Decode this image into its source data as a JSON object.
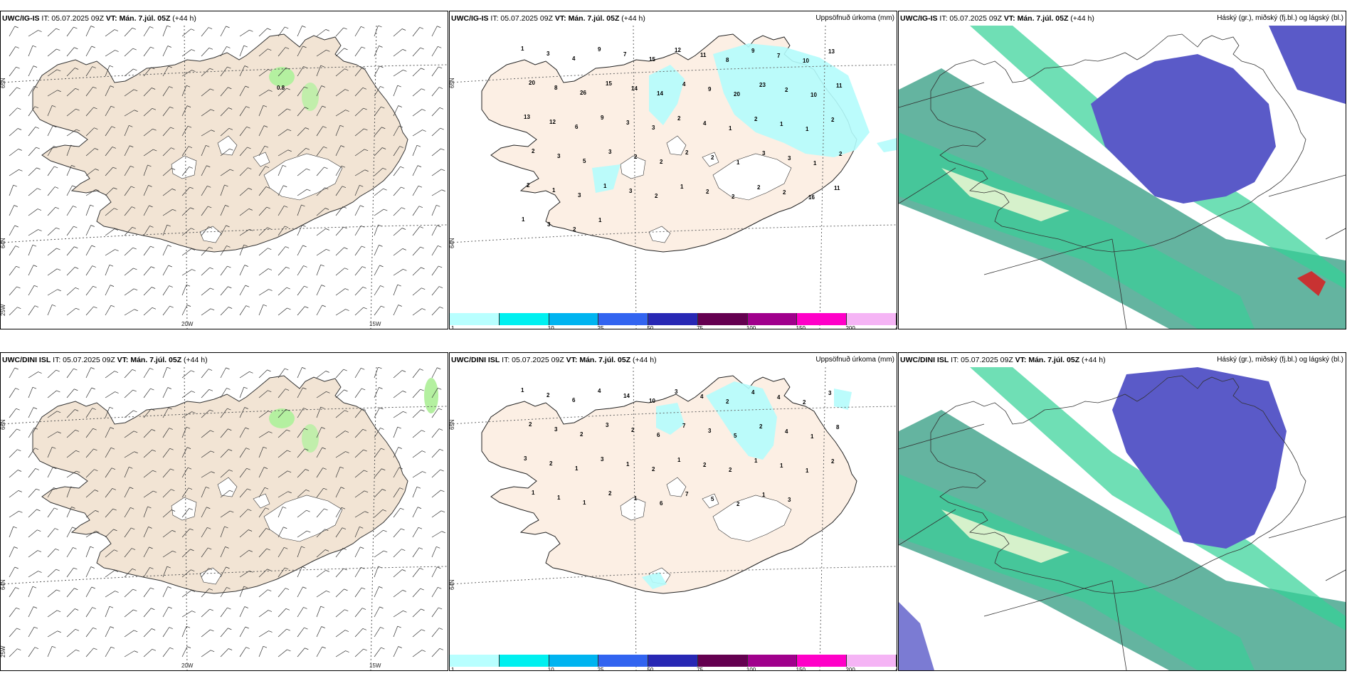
{
  "panels": [
    {
      "model": "UWC/IG-IS",
      "it": "IT: 05.07.2025 09Z",
      "vt": "VT: Mán. 7.júl. 05Z",
      "lead": "(+44 h)",
      "right_title": "",
      "kind": "wind",
      "lat_labels": [
        "65N",
        "64N"
      ],
      "lon_labels": [
        "25W",
        "20W",
        "15W"
      ],
      "point_value": "0.8"
    },
    {
      "model": "UWC/IG-IS",
      "it": "IT: 05.07.2025 09Z",
      "vt": "VT: Mán. 7.júl. 05Z",
      "lead": "(+44 h)",
      "right_title": "Uppsöfnuð úrkoma (mm)",
      "kind": "precip",
      "lat_labels": [
        "65N",
        "64N"
      ],
      "values": [
        "1",
        "3",
        "4",
        "9",
        "7",
        "15",
        "12",
        "11",
        "8",
        "9",
        "7",
        "10",
        "13",
        "20",
        "8",
        "26",
        "15",
        "14",
        "14",
        "4",
        "9",
        "20",
        "23",
        "2",
        "10",
        "11",
        "13",
        "12",
        "6",
        "9",
        "3",
        "3",
        "2",
        "4",
        "1",
        "2",
        "1",
        "1",
        "2",
        "2",
        "3",
        "5",
        "3",
        "2",
        "2",
        "2",
        "2",
        "1",
        "3",
        "3",
        "1",
        "2",
        "2",
        "1",
        "3",
        "1",
        "3",
        "2",
        "1",
        "2",
        "2",
        "2",
        "2",
        "16",
        "11",
        "1",
        "3",
        "2",
        "1"
      ]
    },
    {
      "model": "UWC/IG-IS",
      "it": "IT: 05.07.2025 09Z",
      "vt": "VT: Mán. 7.júl. 05Z",
      "lead": "(+44 h)",
      "right_title": "Háský (gr.), miðský (fj.bl.) og lágský (bl.)",
      "kind": "cloud"
    },
    {
      "model": "UWC/DINI ISL",
      "it": "IT: 05.07.2025 09Z",
      "vt": "VT: Mán. 7.júl. 05Z",
      "lead": "(+44 h)",
      "right_title": "",
      "kind": "wind",
      "lat_labels": [
        "66N",
        "64N"
      ],
      "lon_labels": [
        "25W",
        "20W",
        "15W"
      ]
    },
    {
      "model": "UWC/DINI ISL",
      "it": "IT: 05.07.2025 09Z",
      "vt": "VT: Mán. 7.júl. 05Z",
      "lead": "(+44 h)",
      "right_title": "Uppsöfnuð úrkoma (mm)",
      "kind": "precip",
      "lat_labels": [
        "65N",
        "64N"
      ],
      "values": [
        "1",
        "2",
        "6",
        "4",
        "14",
        "10",
        "3",
        "4",
        "2",
        "4",
        "4",
        "2",
        "3",
        "2",
        "3",
        "2",
        "3",
        "2",
        "6",
        "7",
        "3",
        "5",
        "2",
        "4",
        "1",
        "8",
        "3",
        "2",
        "1",
        "3",
        "1",
        "2",
        "1",
        "2",
        "2",
        "1",
        "1",
        "1",
        "2",
        "1",
        "1",
        "1",
        "2",
        "1",
        "6",
        "7",
        "5",
        "2",
        "1",
        "3"
      ]
    },
    {
      "model": "UWC/DINI ISL",
      "it": "IT: 05.07.2025 09Z",
      "vt": "VT: Mán. 7.júl. 05Z",
      "lead": "(+44 h)",
      "right_title": "Háský (gr.), miðský (fj.bl.) og lágský (bl.)",
      "kind": "cloud"
    }
  ],
  "precip_scale": {
    "labels": [
      "1",
      "10",
      "25",
      "50",
      "75",
      "100",
      "150",
      "200",
      "400"
    ],
    "colors": [
      "#b8ffff",
      "#00f0f0",
      "#00b4f0",
      "#3264f0",
      "#2828b4",
      "#640050",
      "#a0008c",
      "#ff00c8",
      "#f5b4f5"
    ]
  },
  "colors": {
    "land": "#f2e4d4",
    "land_light": "#fcefe4",
    "glacier": "#ffffff",
    "cyan_precip": "#b4fcfc",
    "low_cloud": "#5a5ac8",
    "high_cloud": "#64b4a0",
    "green_band": "#32d296",
    "light_green": "#b4f0a0"
  }
}
